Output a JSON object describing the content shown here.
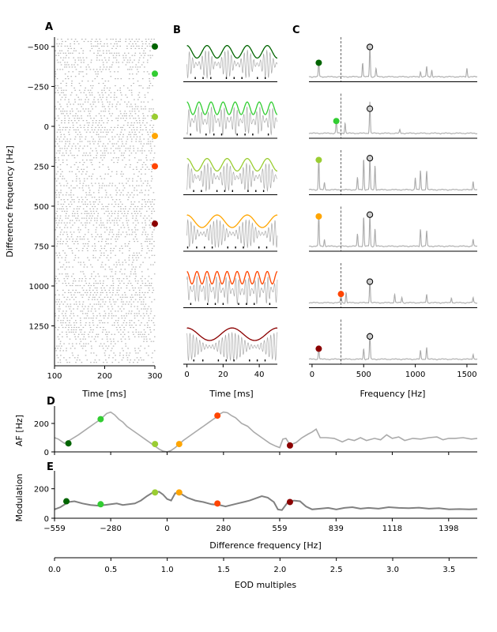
{
  "figure": {
    "panel_letters": [
      "A",
      "B",
      "C",
      "D",
      "E"
    ]
  },
  "colors": {
    "gray_trace": "#aaaaaa",
    "dark_gray": "#808080",
    "axis": "#000000",
    "markers": [
      "#006400",
      "#32cd32",
      "#9acd32",
      "#ffa500",
      "#ff4500",
      "#8b0000"
    ]
  },
  "chart_data": [
    {
      "panel": "A",
      "type": "scatter",
      "subtype": "raster",
      "xlabel": "Time [ms]",
      "ylabel": "Difference frequency [Hz]",
      "xlim": [
        100,
        300
      ],
      "ylim": [
        -559,
        1500
      ],
      "y_inverted": true,
      "xticks": [
        100,
        200,
        300
      ],
      "yticks": [
        -500,
        -250,
        0,
        250,
        500,
        750,
        1000,
        1250
      ],
      "marker_y": [
        -500,
        -330,
        -60,
        60,
        250,
        610
      ]
    },
    {
      "panel": "B",
      "type": "line",
      "xlabel": "Time [ms]",
      "xlim": [
        -2,
        50
      ],
      "xticks": [
        0,
        20,
        40
      ],
      "rows": [
        {
          "beat_freq": 90,
          "carrier_freq": 560
        },
        {
          "beat_freq": 150,
          "carrier_freq": 560
        },
        {
          "beat_freq": 90,
          "carrier_freq": 560
        },
        {
          "beat_freq": 60,
          "carrier_freq": 560
        },
        {
          "beat_freq": 180,
          "carrier_freq": 560
        },
        {
          "beat_freq": 40,
          "carrier_freq": 560
        }
      ]
    },
    {
      "panel": "C",
      "type": "line",
      "xlabel": "Frequency [Hz]",
      "xlim": [
        -30,
        1600
      ],
      "xticks": [
        0,
        500,
        1000,
        1500
      ],
      "dashed_line_x": 280,
      "eod_peak_x": 560,
      "rows": [
        {
          "marker_x": 65,
          "marker_level": 0.45,
          "eod_level": 0.9,
          "peaks": [
            [
              65,
              0.45
            ],
            [
              490,
              0.4
            ],
            [
              560,
              0.95
            ],
            [
              620,
              0.25
            ],
            [
              1050,
              0.15
            ],
            [
              1110,
              0.3
            ],
            [
              1160,
              0.2
            ],
            [
              1500,
              0.25
            ]
          ]
        },
        {
          "marker_x": 235,
          "marker_level": 0.4,
          "eod_level": 0.75,
          "peaks": [
            [
              235,
              0.4
            ],
            [
              320,
              0.3
            ],
            [
              560,
              0.9
            ],
            [
              850,
              0.1
            ]
          ]
        },
        {
          "marker_x": 65,
          "marker_level": 0.9,
          "eod_level": 0.95,
          "peaks": [
            [
              65,
              0.9
            ],
            [
              120,
              0.2
            ],
            [
              440,
              0.35
            ],
            [
              500,
              0.9
            ],
            [
              560,
              0.95
            ],
            [
              610,
              0.7
            ],
            [
              1000,
              0.35
            ],
            [
              1050,
              0.55
            ],
            [
              1110,
              0.55
            ],
            [
              1560,
              0.25
            ]
          ]
        },
        {
          "marker_x": 65,
          "marker_level": 0.9,
          "eod_level": 0.95,
          "peaks": [
            [
              65,
              0.9
            ],
            [
              120,
              0.2
            ],
            [
              440,
              0.35
            ],
            [
              500,
              0.85
            ],
            [
              560,
              0.95
            ],
            [
              610,
              0.5
            ],
            [
              1050,
              0.5
            ],
            [
              1110,
              0.45
            ],
            [
              1560,
              0.2
            ]
          ]
        },
        {
          "marker_x": 280,
          "marker_level": 0.3,
          "eod_level": 0.65,
          "peaks": [
            [
              280,
              0.3
            ],
            [
              330,
              0.3
            ],
            [
              560,
              0.7
            ],
            [
              800,
              0.25
            ],
            [
              870,
              0.15
            ],
            [
              1110,
              0.25
            ],
            [
              1350,
              0.15
            ],
            [
              1560,
              0.15
            ]
          ]
        },
        {
          "marker_x": 65,
          "marker_level": 0.35,
          "eod_level": 0.7,
          "peaks": [
            [
              65,
              0.35
            ],
            [
              500,
              0.3
            ],
            [
              560,
              0.75
            ],
            [
              1050,
              0.25
            ],
            [
              1110,
              0.35
            ],
            [
              1560,
              0.15
            ]
          ]
        }
      ]
    },
    {
      "panel": "D",
      "type": "line",
      "ylabel": "AF [Hz]",
      "xlim": [
        -559,
        1540
      ],
      "ylim": [
        0,
        300
      ],
      "yticks": [
        0,
        200
      ],
      "x": [
        -559,
        -540,
        -510,
        -480,
        -440,
        -400,
        -360,
        -330,
        -300,
        -280,
        -260,
        -240,
        -220,
        -200,
        -170,
        -140,
        -110,
        -80,
        -60,
        -40,
        -20,
        0,
        20,
        40,
        60,
        80,
        100,
        120,
        150,
        180,
        210,
        240,
        260,
        280,
        300,
        320,
        340,
        370,
        400,
        430,
        470,
        510,
        540,
        559,
        575,
        590,
        610,
        640,
        670,
        700,
        720,
        740,
        760,
        790,
        830,
        870,
        900,
        930,
        960,
        990,
        1030,
        1060,
        1090,
        1118,
        1150,
        1180,
        1220,
        1260,
        1300,
        1340,
        1370,
        1398,
        1430,
        1470,
        1510,
        1540
      ],
      "y": [
        100,
        90,
        60,
        85,
        120,
        160,
        200,
        230,
        270,
        280,
        260,
        230,
        210,
        180,
        150,
        120,
        90,
        60,
        40,
        20,
        5,
        0,
        10,
        30,
        55,
        80,
        100,
        120,
        150,
        180,
        210,
        240,
        265,
        280,
        275,
        255,
        240,
        200,
        180,
        140,
        100,
        60,
        40,
        30,
        90,
        95,
        50,
        65,
        100,
        125,
        140,
        160,
        100,
        100,
        95,
        70,
        90,
        80,
        100,
        80,
        95,
        85,
        120,
        95,
        105,
        80,
        95,
        90,
        100,
        105,
        85,
        95,
        95,
        100,
        90,
        95
      ],
      "markers": [
        {
          "x": -490,
          "y": 60
        },
        {
          "x": -330,
          "y": 230
        },
        {
          "x": -60,
          "y": 55
        },
        {
          "x": 60,
          "y": 55
        },
        {
          "x": 250,
          "y": 255
        },
        {
          "x": 610,
          "y": 45
        }
      ]
    },
    {
      "panel": "E",
      "type": "line",
      "ylabel": "Modulation",
      "xlabel": "Difference frequency [Hz]",
      "xlim": [
        -559,
        1540
      ],
      "ylim": [
        0,
        300
      ],
      "yticks": [
        0,
        200
      ],
      "xticks": [
        -559,
        -280,
        0,
        280,
        559,
        839,
        1118,
        1398
      ],
      "x": [
        -559,
        -530,
        -490,
        -460,
        -420,
        -380,
        -340,
        -310,
        -280,
        -250,
        -220,
        -190,
        -160,
        -130,
        -100,
        -70,
        -40,
        -20,
        0,
        20,
        40,
        70,
        100,
        140,
        180,
        220,
        260,
        290,
        320,
        350,
        380,
        410,
        440,
        470,
        500,
        530,
        550,
        570,
        600,
        630,
        660,
        690,
        720,
        760,
        800,
        840,
        880,
        920,
        960,
        1000,
        1050,
        1100,
        1150,
        1200,
        1250,
        1300,
        1350,
        1400,
        1450,
        1500,
        1540
      ],
      "y": [
        60,
        75,
        110,
        115,
        100,
        90,
        85,
        90,
        95,
        100,
        90,
        95,
        100,
        120,
        150,
        175,
        180,
        160,
        130,
        120,
        170,
        165,
        140,
        120,
        110,
        95,
        90,
        80,
        90,
        100,
        110,
        120,
        135,
        150,
        140,
        110,
        60,
        55,
        110,
        120,
        115,
        80,
        60,
        65,
        70,
        60,
        70,
        75,
        65,
        70,
        65,
        75,
        70,
        68,
        72,
        65,
        68,
        60,
        62,
        60,
        62
      ],
      "markers": [
        {
          "x": -500,
          "y": 115
        },
        {
          "x": -330,
          "y": 95
        },
        {
          "x": -60,
          "y": 175
        },
        {
          "x": 60,
          "y": 175
        },
        {
          "x": 250,
          "y": 100
        },
        {
          "x": 610,
          "y": 110
        }
      ]
    },
    {
      "panel": "E-twin",
      "type": "line",
      "xlabel": "EOD multiples",
      "xlim": [
        0,
        3.75
      ],
      "xticks": [
        0.0,
        0.5,
        1.0,
        1.5,
        2.0,
        2.5,
        3.0,
        3.5
      ],
      "xticklabels": [
        "0.0",
        "0.5",
        "1.0",
        "1.5",
        "2.0",
        "2.5",
        "3.0",
        "3.5"
      ]
    }
  ]
}
